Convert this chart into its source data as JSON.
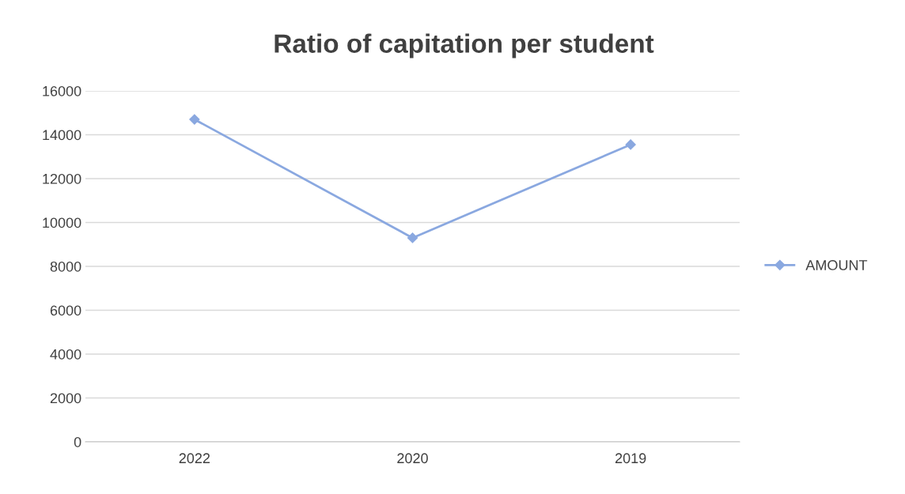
{
  "chart_data": {
    "type": "line",
    "title": "Ratio of capitation per student",
    "categories": [
      "2022",
      "2020",
      "2019"
    ],
    "series": [
      {
        "name": "AMOUNT",
        "color": "#8aa8e0",
        "values": [
          14700,
          9300,
          13550
        ]
      }
    ],
    "ylim": [
      0,
      16000
    ],
    "yticks": [
      0,
      2000,
      4000,
      6000,
      8000,
      10000,
      12000,
      14000,
      16000
    ],
    "grid": "y",
    "legend": "right",
    "marker": "diamond",
    "line_style": "solid"
  }
}
